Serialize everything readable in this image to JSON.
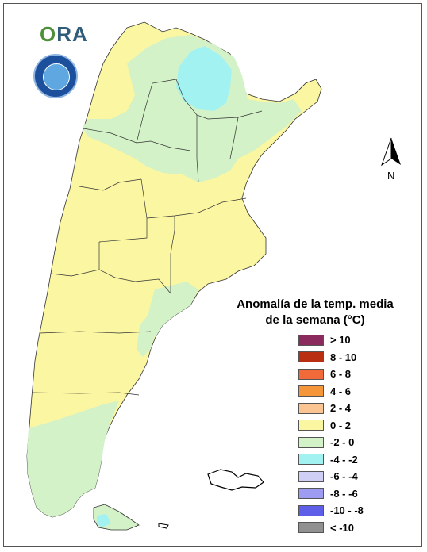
{
  "logo": {
    "text_main": "O",
    "text_rest": "RA"
  },
  "seal": {
    "name": "smn-seal"
  },
  "north_arrow": {
    "label": "N"
  },
  "legend": {
    "title_line1": "Anomalía de la temp. media",
    "title_line2": "de la semana (°C)",
    "items": [
      {
        "label": "> 10",
        "color": "#8B2A5C"
      },
      {
        "label": "8 - 10",
        "color": "#B82F12"
      },
      {
        "label": "6 - 8",
        "color": "#F26A3A"
      },
      {
        "label": "4 - 6",
        "color": "#F5963A"
      },
      {
        "label": "2 - 4",
        "color": "#FBC493"
      },
      {
        "label": "0 - 2",
        "color": "#FBF6A2"
      },
      {
        "label": "-2 - 0",
        "color": "#D3F2C8"
      },
      {
        "label": "-4 - -2",
        "color": "#A3F2F2"
      },
      {
        "label": "-6 - -4",
        "color": "#CFCEF5"
      },
      {
        "label": "-8 - -6",
        "color": "#9E9CF2"
      },
      {
        "label": "-10 - -8",
        "color": "#5F5EE8"
      },
      {
        "label": "< -10",
        "color": "#909090"
      }
    ]
  },
  "map": {
    "base_color": "#FBF6A2",
    "cool_color": "#D3F2C8",
    "cold_color": "#A3F2F2",
    "border_color": "#333333"
  }
}
